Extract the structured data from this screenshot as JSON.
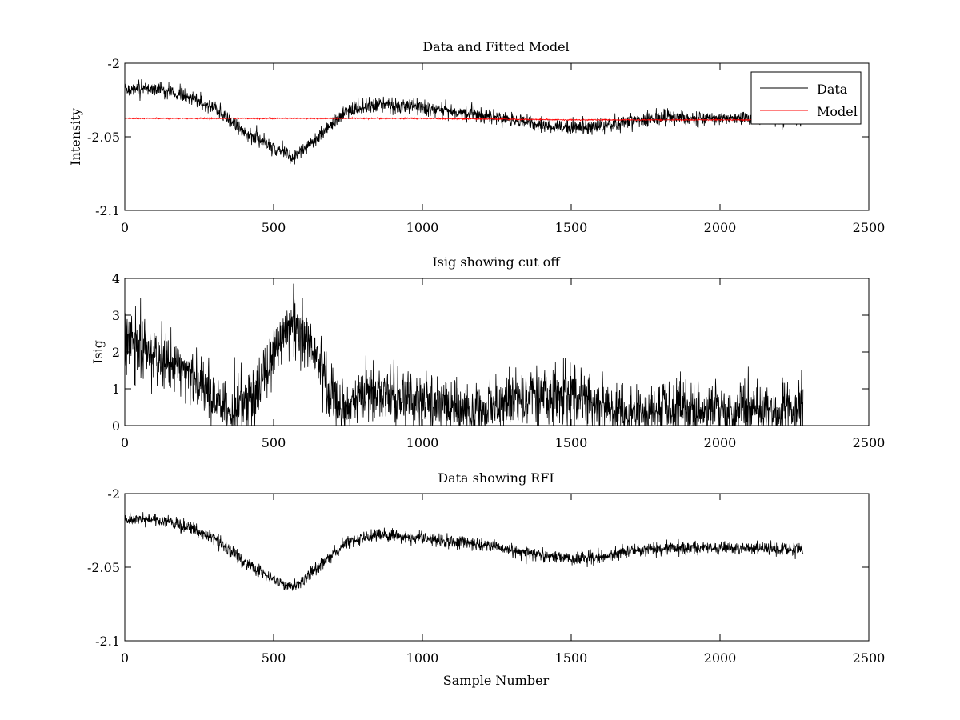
{
  "figure": {
    "xlabel": "Sample Number"
  },
  "colors": {
    "data": "#000000",
    "model": "#ff0000",
    "axes": "#000000",
    "background": "#ffffff"
  },
  "chart_data": [
    {
      "type": "line",
      "title": "Data and Fitted Model",
      "xlabel": "",
      "ylabel": "Intensity",
      "xlim": [
        0,
        2500
      ],
      "ylim": [
        -2.1,
        -2.0
      ],
      "xticks": [
        0,
        500,
        1000,
        1500,
        2000,
        2500
      ],
      "xtick_labels": [
        "0",
        "500",
        "1000",
        "1500",
        "2000",
        "2500"
      ],
      "yticks": [
        -2.1,
        -2.05,
        -2.0
      ],
      "ytick_labels": [
        "-2.1",
        "-2.05",
        "-2"
      ],
      "legend": {
        "position": "top-right",
        "entries": [
          "Data",
          "Model"
        ]
      },
      "series": [
        {
          "name": "Data",
          "color": "#000000",
          "n_samples": 2280,
          "noise_std": 0.0025,
          "trend_x": [
            0,
            100,
            200,
            300,
            400,
            500,
            565,
            650,
            750,
            850,
            1000,
            1200,
            1400,
            1500,
            1600,
            1700,
            1800,
            2000,
            2280
          ],
          "trend_y": [
            -2.018,
            -2.017,
            -2.022,
            -2.03,
            -2.046,
            -2.058,
            -2.064,
            -2.05,
            -2.032,
            -2.028,
            -2.03,
            -2.035,
            -2.042,
            -2.044,
            -2.043,
            -2.039,
            -2.037,
            -2.037,
            -2.038
          ]
        },
        {
          "name": "Model",
          "color": "#ff0000",
          "n_samples": 2280,
          "noise_std": 0.0002,
          "trend_x": [
            0,
            600,
            1000,
            1500,
            2280
          ],
          "trend_y": [
            -2.0375,
            -2.0375,
            -2.0375,
            -2.0385,
            -2.0385
          ]
        }
      ]
    },
    {
      "type": "line",
      "title": "Isig showing cut off",
      "xlabel": "",
      "ylabel": "Isig",
      "xlim": [
        0,
        2500
      ],
      "ylim": [
        0,
        4
      ],
      "xticks": [
        0,
        500,
        1000,
        1500,
        2000,
        2500
      ],
      "xtick_labels": [
        "0",
        "500",
        "1000",
        "1500",
        "2000",
        "2500"
      ],
      "yticks": [
        0,
        1,
        2,
        3,
        4
      ],
      "ytick_labels": [
        "0",
        "1",
        "2",
        "3",
        "4"
      ],
      "series": [
        {
          "name": "Isig",
          "color": "#000000",
          "n_samples": 2280,
          "noise_std": 0.4,
          "clip_min": 0,
          "trend_x": [
            0,
            100,
            250,
            350,
            450,
            560,
            650,
            720,
            800,
            1000,
            1200,
            1300,
            1450,
            1600,
            1700,
            2000,
            2280
          ],
          "trend_y": [
            2.3,
            2.0,
            1.2,
            0.3,
            1.0,
            2.9,
            1.8,
            0.3,
            0.9,
            0.7,
            0.35,
            0.65,
            0.9,
            0.5,
            0.35,
            0.45,
            0.45
          ]
        }
      ]
    },
    {
      "type": "line",
      "title": "Data showing RFI",
      "xlabel": "Sample Number",
      "ylabel": "",
      "xlim": [
        0,
        2500
      ],
      "ylim": [
        -2.1,
        -2.0
      ],
      "xticks": [
        0,
        500,
        1000,
        1500,
        2000,
        2500
      ],
      "xtick_labels": [
        "0",
        "500",
        "1000",
        "1500",
        "2000",
        "2500"
      ],
      "yticks": [
        -2.1,
        -2.05,
        -2.0
      ],
      "ytick_labels": [
        "-2.1",
        "-2.05",
        "-2"
      ],
      "series": [
        {
          "name": "Data",
          "color": "#000000",
          "n_samples": 2280,
          "noise_std": 0.0022,
          "trend_x": [
            0,
            100,
            200,
            300,
            400,
            500,
            565,
            650,
            750,
            850,
            1000,
            1200,
            1400,
            1500,
            1600,
            1700,
            1800,
            2000,
            2280
          ],
          "trend_y": [
            -2.018,
            -2.017,
            -2.022,
            -2.03,
            -2.046,
            -2.058,
            -2.064,
            -2.05,
            -2.032,
            -2.028,
            -2.03,
            -2.035,
            -2.042,
            -2.044,
            -2.043,
            -2.039,
            -2.037,
            -2.037,
            -2.038
          ]
        }
      ]
    }
  ]
}
